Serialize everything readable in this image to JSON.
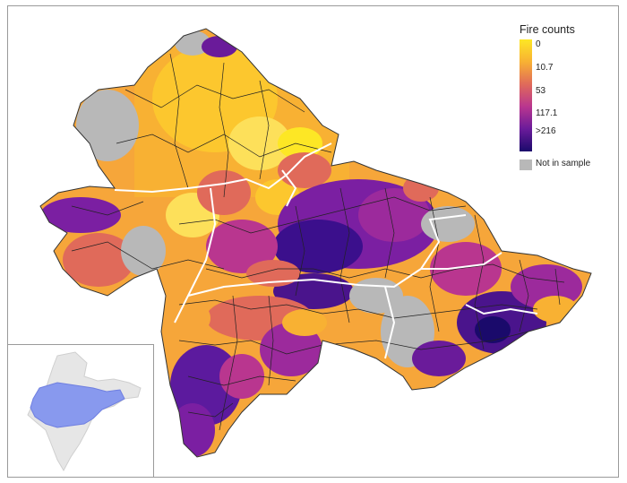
{
  "legend": {
    "title": "Fire counts",
    "ticks": [
      "0",
      "10.7",
      "53",
      "117.1",
      ">216"
    ],
    "na_label": "Not in sample"
  },
  "colors": {
    "scale": [
      "#fde725",
      "#f8b133",
      "#e06a5a",
      "#b9368f",
      "#6a1b9a",
      "#1a0a6b"
    ],
    "not_in_sample": "#b8b8b8",
    "state_border": "#ffffff",
    "district_border": "#222222",
    "inset_india": "#e6e6e6",
    "inset_highlight": "#8899ee"
  }
}
